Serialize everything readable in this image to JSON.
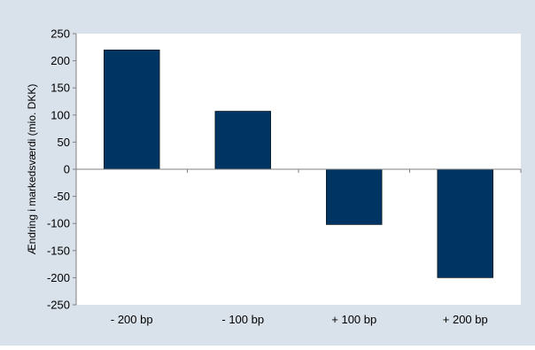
{
  "chart_data": {
    "type": "bar",
    "categories": [
      "- 200 bp",
      "- 100 bp",
      "+ 100 bp",
      "+ 200 bp"
    ],
    "values": [
      220,
      107,
      -102,
      -200
    ],
    "title": "",
    "xlabel": "",
    "ylabel": "Ændring i markedsværdi (mio. DKK)",
    "ylim": [
      -250,
      250
    ],
    "yticks": [
      250,
      200,
      150,
      100,
      50,
      0,
      -50,
      -100,
      -150,
      -200,
      -250
    ],
    "grid": false,
    "legend": "none",
    "colors": {
      "bar": "#003462",
      "frame_background": "#d9e1ea",
      "plot_background": "#ffffff",
      "axis": "#808080"
    }
  }
}
